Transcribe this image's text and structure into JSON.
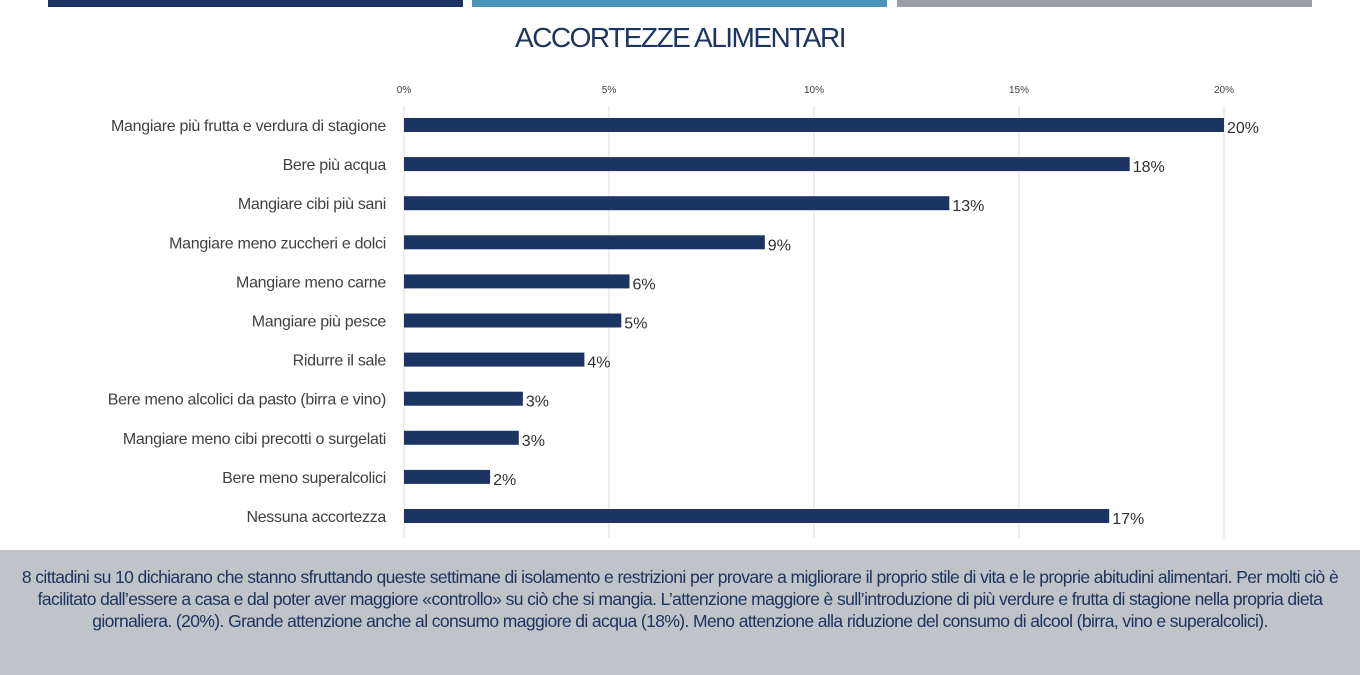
{
  "colors": {
    "bar": "#1c3461",
    "top_bar_1": "#1c3461",
    "top_bar_2": "#4a94bc",
    "top_bar_3": "#9a9fa6",
    "footer_bg": "#c0c4c8"
  },
  "chart_data": {
    "type": "bar",
    "orientation": "horizontal",
    "title": "ACCORTEZZE ALIMENTARI",
    "xlabel": "",
    "ylabel": "",
    "xlim": [
      0,
      20
    ],
    "x_ticks": [
      "0%",
      "5%",
      "10%",
      "15%",
      "20%"
    ],
    "grid": true,
    "categories": [
      "Mangiare più frutta e verdura di stagione",
      "Bere più acqua",
      "Mangiare cibi più sani",
      "Mangiare meno zuccheri e dolci",
      "Mangiare meno carne",
      "Mangiare più pesce",
      "Ridurre il sale",
      "Bere meno alcolici da pasto (birra e vino)",
      "Mangiare meno cibi precotti o surgelati",
      "Bere meno superalcolici",
      "Nessuna accortezza"
    ],
    "values": [
      20.0,
      17.7,
      13.3,
      8.8,
      5.5,
      5.3,
      4.4,
      2.9,
      2.8,
      2.1,
      17.2
    ],
    "data_labels": [
      "20%",
      "18%",
      "13%",
      "9%",
      "6%",
      "5%",
      "4%",
      "3%",
      "3%",
      "2%",
      "17%"
    ]
  },
  "footer": {
    "text": "8 cittadini su 10 dichiarano che stanno sfruttando queste settimane di isolamento e restrizioni per provare a migliorare il proprio stile di vita e le proprie abitudini alimentari. Per molti ciò è facilitato dall’essere a casa e dal poter aver maggiore «controllo» su ciò che si mangia. L’attenzione maggiore è sull’introduzione di più verdure e frutta di stagione nella propria dieta giornaliera. (20%). Grande attenzione anche al consumo maggiore di acqua (18%). Meno attenzione alla riduzione del consumo di alcool (birra, vino e superalcolici)."
  }
}
